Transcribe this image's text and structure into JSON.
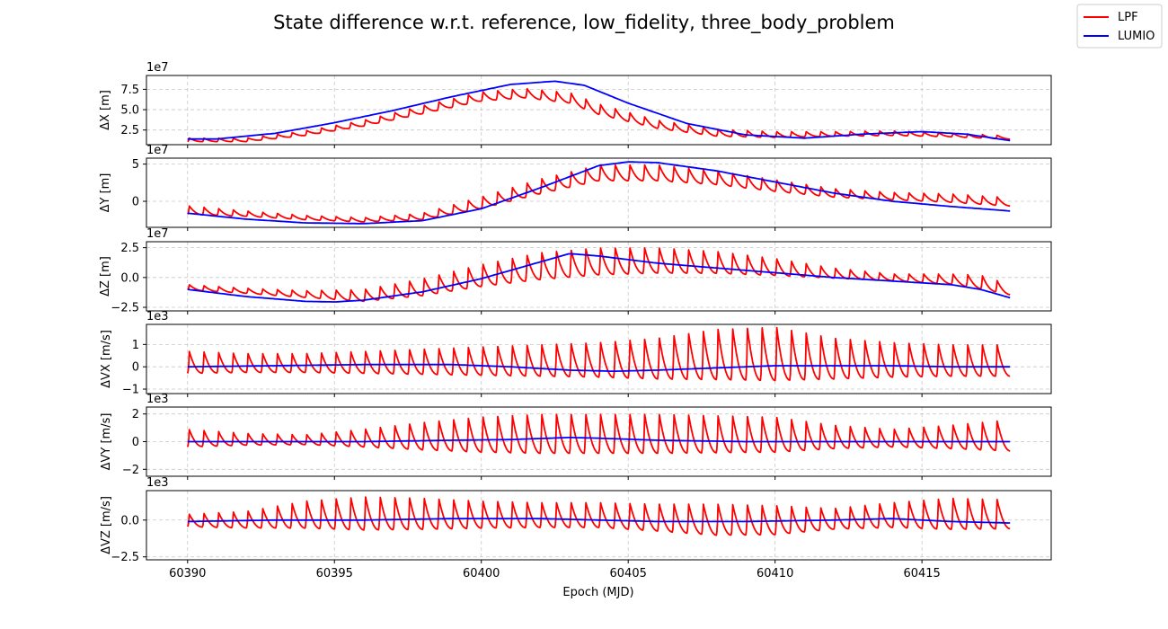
{
  "figure": {
    "title": "State difference w.r.t. reference, low_fidelity, three_body_problem",
    "xlabel": "Epoch (MJD)"
  },
  "legend": {
    "placement": "top-right",
    "entries": [
      {
        "name": "LPF",
        "color": "#ff0000"
      },
      {
        "name": "LUMIO",
        "color": "#0000ff"
      }
    ]
  },
  "chart_data": {
    "type": "line",
    "x_range": [
      60390,
      60418
    ],
    "xlim": [
      60388.6,
      60419.4
    ],
    "xticks": [
      60390,
      60395,
      60400,
      60405,
      60410,
      60415
    ],
    "xtick_labels": [
      "60390",
      "60395",
      "60400",
      "60405",
      "60410",
      "60415"
    ],
    "lpf_oscillation_period_days": 0.5,
    "grid": true,
    "panels": [
      {
        "ylabel": "ΔX [m]",
        "offset_label": "1e7",
        "ylim": [
          0.7,
          9.2
        ],
        "yticks": [
          2.5,
          5.0,
          7.5
        ],
        "ytick_labels": [
          "2.5",
          "5.0",
          "7.5"
        ],
        "series": [
          {
            "name": "LUMIO",
            "color": "#0000ff",
            "x": [
              60390,
              60391,
              60393,
              60395,
              60397,
              60399,
              60401,
              60402.5,
              60403.5,
              60405,
              60407,
              60409,
              60411,
              60413,
              60415,
              60416.5,
              60418
            ],
            "y": [
              1.4,
              1.4,
              2.1,
              3.4,
              4.9,
              6.6,
              8.1,
              8.5,
              8.0,
              5.8,
              3.3,
              1.9,
              1.5,
              2.0,
              2.3,
              2.0,
              1.2
            ]
          },
          {
            "name": "LPF",
            "color": "#ff0000",
            "x": [
              60390,
              60392,
              60394,
              60396,
              60398,
              60400,
              60401.5,
              60403,
              60404,
              60406,
              60408,
              60410,
              60412,
              60414,
              60416,
              60418
            ],
            "y": [
              1.2,
              1.2,
              2.0,
              3.2,
              4.8,
              6.4,
              6.8,
              6.2,
              4.8,
              3.0,
              2.0,
              1.8,
              1.9,
              2.0,
              1.8,
              1.5
            ],
            "amp": [
              0.3,
              0.3,
              0.4,
              0.5,
              0.7,
              0.8,
              0.8,
              0.9,
              0.9,
              0.7,
              0.6,
              0.5,
              0.4,
              0.4,
              0.3,
              0.3
            ]
          }
        ]
      },
      {
        "ylabel": "ΔY [m]",
        "offset_label": "1e7",
        "ylim": [
          -3.5,
          5.8
        ],
        "yticks": [
          0,
          5
        ],
        "ytick_labels": [
          "0",
          "5"
        ],
        "series": [
          {
            "name": "LUMIO",
            "color": "#0000ff",
            "x": [
              60390,
              60392,
              60394,
              60396,
              60398,
              60400,
              60402,
              60404,
              60405,
              60406,
              60408,
              60410,
              60412,
              60414,
              60416,
              60418
            ],
            "y": [
              -1.6,
              -2.4,
              -2.9,
              -3.0,
              -2.6,
              -1.0,
              1.8,
              4.8,
              5.3,
              5.2,
              4.1,
              2.6,
              1.1,
              0.0,
              -0.7,
              -1.3
            ]
          },
          {
            "name": "LPF",
            "color": "#ff0000",
            "x": [
              60390,
              60392,
              60394,
              60396,
              60398,
              60400,
              60402,
              60404,
              60406,
              60408,
              60410,
              60412,
              60414,
              60416,
              60418
            ],
            "y": [
              -1.4,
              -1.8,
              -2.3,
              -2.6,
              -2.2,
              -0.5,
              1.6,
              3.4,
              3.4,
              2.8,
              1.8,
              0.9,
              0.5,
              0.2,
              -0.3
            ],
            "amp": [
              0.8,
              0.5,
              0.4,
              0.4,
              0.6,
              1.1,
              1.4,
              1.5,
              1.5,
              1.3,
              1.1,
              0.8,
              0.7,
              0.8,
              0.8
            ]
          }
        ]
      },
      {
        "ylabel": "ΔZ [m]",
        "offset_label": "1e7",
        "ylim": [
          -2.8,
          3.0
        ],
        "yticks": [
          -2.5,
          0.0,
          2.5
        ],
        "ytick_labels": [
          "−2.5",
          "0.0",
          "2.5"
        ],
        "series": [
          {
            "name": "LUMIO",
            "color": "#0000ff",
            "x": [
              60390,
              60392,
              60394,
              60395,
              60396,
              60398,
              60400,
              60402,
              60403,
              60404,
              60406,
              60408,
              60410,
              60412,
              60414,
              60416,
              60417,
              60418
            ],
            "y": [
              -1.0,
              -1.6,
              -2.0,
              -2.05,
              -1.9,
              -1.2,
              -0.1,
              1.3,
              2.0,
              1.8,
              1.2,
              0.8,
              0.4,
              0.0,
              -0.3,
              -0.6,
              -1.0,
              -1.7
            ]
          },
          {
            "name": "LPF",
            "color": "#ff0000",
            "x": [
              60390,
              60392,
              60394,
              60396,
              60398,
              60400,
              60402,
              60404,
              60406,
              60408,
              60410,
              60412,
              60414,
              60416,
              60417,
              60418
            ],
            "y": [
              -0.9,
              -1.2,
              -1.5,
              -1.7,
              -1.1,
              -0.2,
              0.5,
              0.9,
              1.0,
              0.9,
              0.6,
              0.2,
              -0.1,
              -0.3,
              -0.6,
              -1.2
            ],
            "amp": [
              0.3,
              0.3,
              0.4,
              0.7,
              1.0,
              1.3,
              1.6,
              1.6,
              1.5,
              1.3,
              1.0,
              0.6,
              0.4,
              0.6,
              0.8,
              0.6
            ]
          }
        ]
      },
      {
        "ylabel": "ΔVX [m/s]",
        "offset_label": "1e3",
        "ylim": [
          -1.2,
          1.9
        ],
        "yticks": [
          -1,
          0,
          1
        ],
        "ytick_labels": [
          "−1",
          "0",
          "1"
        ],
        "series": [
          {
            "name": "LUMIO",
            "color": "#0000ff",
            "x": [
              60390,
              60393,
              60396,
              60399,
              60401,
              60403,
              60404.5,
              60406,
              60408,
              60410,
              60412,
              60414,
              60416,
              60418
            ],
            "y": [
              0.0,
              0.05,
              0.1,
              0.1,
              0.0,
              -0.15,
              -0.2,
              -0.15,
              -0.05,
              0.05,
              0.05,
              0.05,
              0.0,
              0.0
            ]
          },
          {
            "name": "LPF",
            "color": "#ff0000",
            "x": [
              60390,
              60392,
              60394,
              60396,
              60398,
              60400,
              60402,
              60404,
              60406,
              60408,
              60410,
              60412,
              60414,
              60416,
              60418
            ],
            "y": [
              0.0,
              0.0,
              0.0,
              0.0,
              0.0,
              0.0,
              0.0,
              0.0,
              0.0,
              0.1,
              0.1,
              0.0,
              0.0,
              0.0,
              0.0
            ],
            "amp": [
              0.7,
              0.6,
              0.6,
              0.7,
              0.8,
              0.9,
              1.0,
              1.1,
              1.3,
              1.6,
              1.7,
              1.3,
              1.1,
              1.0,
              1.0
            ]
          }
        ]
      },
      {
        "ylabel": "ΔVY [m/s]",
        "offset_label": "1e3",
        "ylim": [
          -2.5,
          2.5
        ],
        "yticks": [
          -2,
          0,
          2
        ],
        "ytick_labels": [
          "−2",
          "0",
          "2"
        ],
        "series": [
          {
            "name": "LUMIO",
            "color": "#0000ff",
            "x": [
              60390,
              60393,
              60396,
              60399,
              60401,
              60403,
              60404,
              60406,
              60409,
              60412,
              60415,
              60418
            ],
            "y": [
              0.0,
              0.0,
              0.0,
              0.1,
              0.15,
              0.3,
              0.25,
              0.1,
              0.0,
              0.0,
              0.0,
              0.0
            ]
          },
          {
            "name": "LPF",
            "color": "#ff0000",
            "x": [
              60390,
              60392,
              60394,
              60396,
              60398,
              60400,
              60402,
              60404,
              60406,
              60408,
              60410,
              60412,
              60414,
              60416,
              60418
            ],
            "y": [
              0.0,
              0.0,
              0.0,
              0.0,
              0.0,
              0.0,
              0.0,
              0.0,
              0.0,
              0.0,
              0.0,
              0.0,
              0.0,
              0.0,
              0.0
            ],
            "amp": [
              0.9,
              0.6,
              0.5,
              0.9,
              1.4,
              1.8,
              2.0,
              2.0,
              2.0,
              1.9,
              1.8,
              1.2,
              0.9,
              1.2,
              1.6
            ]
          }
        ]
      },
      {
        "ylabel": "ΔVZ [m/s]",
        "offset_label": "1e3",
        "ylim": [
          -2.7,
          2.0
        ],
        "yticks": [
          -2.5,
          0.0
        ],
        "ytick_labels": [
          "−2.5",
          "0.0"
        ],
        "series": [
          {
            "name": "LUMIO",
            "color": "#0000ff",
            "x": [
              60390,
              60393,
              60396,
              60399,
              60402,
              60404,
              60406,
              60409,
              60412,
              60414,
              60416,
              60418
            ],
            "y": [
              -0.1,
              0.0,
              0.0,
              0.1,
              0.1,
              0.0,
              -0.1,
              -0.1,
              0.0,
              0.1,
              -0.1,
              -0.2
            ]
          },
          {
            "name": "LPF",
            "color": "#ff0000",
            "x": [
              60390,
              60392,
              60394,
              60396,
              60398,
              60400,
              60402,
              60404,
              60406,
              60408,
              60410,
              60412,
              60414,
              60416,
              60418
            ],
            "y": [
              -0.2,
              -0.2,
              0.0,
              0.0,
              0.0,
              0.0,
              0.0,
              0.0,
              -0.2,
              -0.4,
              -0.4,
              -0.2,
              0.0,
              0.0,
              0.0
            ],
            "amp": [
              0.6,
              0.8,
              1.3,
              1.6,
              1.5,
              1.3,
              1.2,
              1.2,
              1.3,
              1.5,
              1.4,
              1.0,
              1.2,
              1.5,
              1.4
            ]
          }
        ]
      }
    ]
  }
}
